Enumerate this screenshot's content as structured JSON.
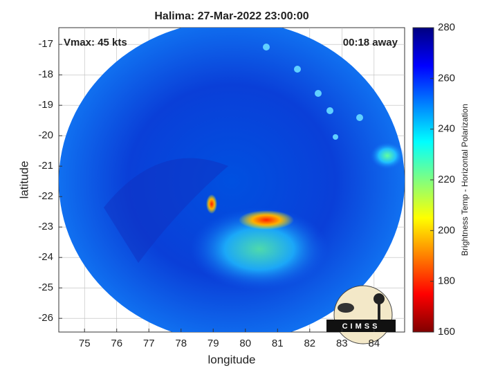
{
  "chart_data": {
    "type": "image",
    "title": "Halima: 27-Mar-2022 23:00:00",
    "xlabel": "longitude",
    "ylabel": "latitude",
    "xlim": [
      74.2,
      84.95
    ],
    "ylim": [
      -26.45,
      -16.45
    ],
    "xticks": [
      75,
      76,
      77,
      78,
      79,
      80,
      81,
      82,
      83,
      84
    ],
    "yticks": [
      -26,
      -25,
      -24,
      -23,
      -22,
      -21,
      -20,
      -19,
      -18,
      -17
    ],
    "grid": true,
    "annotations": [
      "Vmax: 45 kts",
      "00:18 away"
    ],
    "colorbar": {
      "label": "Brightness Temp - Horizontal Polarization",
      "lim": [
        160,
        280
      ],
      "ticks": [
        160,
        180,
        200,
        220,
        240,
        260,
        280
      ],
      "colors": [
        "#800000",
        "#ff0000",
        "#ff8000",
        "#ffff00",
        "#80ff80",
        "#00ffff",
        "#0080ff",
        "#0000ff",
        "#000080"
      ]
    }
  },
  "logo": {
    "text": "CIMSS"
  }
}
